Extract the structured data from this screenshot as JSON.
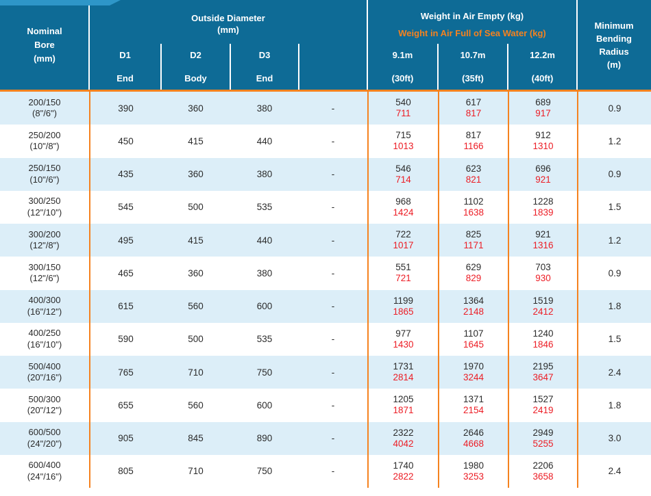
{
  "colors": {
    "header_bg": "#0E6B96",
    "accent_band": "#2E96C8",
    "orange": "#F5821F",
    "red": "#EC1C24",
    "row_alt_blue": "#DCEEF8",
    "text": "#2B2B2B"
  },
  "header": {
    "nominal_bore": "Nominal\nBore\n(mm)",
    "outside_diameter": {
      "title": "Outside Diameter",
      "unit": "(mm)",
      "subcols": [
        {
          "id": "D1",
          "position": "End"
        },
        {
          "id": "D2",
          "position": "Body"
        },
        {
          "id": "D3",
          "position": "End"
        },
        {
          "id": "",
          "position": ""
        }
      ]
    },
    "weight": {
      "title_empty": "Weight in Air Empty (kg)",
      "title_full": "Weight in Air Full of Sea Water (kg)",
      "lengths": [
        {
          "m": "9.1m",
          "ft": "(30ft)"
        },
        {
          "m": "10.7m",
          "ft": "(35ft)"
        },
        {
          "m": "12.2m",
          "ft": "(40ft)"
        }
      ]
    },
    "min_bending_radius": "Minimum\nBending\nRadius\n(m)"
  },
  "rows": [
    {
      "bore": "200/150\n(8\"/6\")",
      "d1": "390",
      "d2": "360",
      "d3": "380",
      "d4": "-",
      "w30_empty": "540",
      "w30_full": "711",
      "w35_empty": "617",
      "w35_full": "817",
      "w40_empty": "689",
      "w40_full": "917",
      "radius": "0.9"
    },
    {
      "bore": "250/200\n(10\"/8\")",
      "d1": "450",
      "d2": "415",
      "d3": "440",
      "d4": "-",
      "w30_empty": "715",
      "w30_full": "1013",
      "w35_empty": "817",
      "w35_full": "1166",
      "w40_empty": "912",
      "w40_full": "1310",
      "radius": "1.2"
    },
    {
      "bore": "250/150\n(10\"/6\")",
      "d1": "435",
      "d2": "360",
      "d3": "380",
      "d4": "-",
      "w30_empty": "546",
      "w30_full": "714",
      "w35_empty": "623",
      "w35_full": "821",
      "w40_empty": "696",
      "w40_full": "921",
      "radius": "0.9"
    },
    {
      "bore": "300/250\n(12\"/10\")",
      "d1": "545",
      "d2": "500",
      "d3": "535",
      "d4": "-",
      "w30_empty": "968",
      "w30_full": "1424",
      "w35_empty": "1102",
      "w35_full": "1638",
      "w40_empty": "1228",
      "w40_full": "1839",
      "radius": "1.5"
    },
    {
      "bore": "300/200\n(12\"/8\")",
      "d1": "495",
      "d2": "415",
      "d3": "440",
      "d4": "-",
      "w30_empty": "722",
      "w30_full": "1017",
      "w35_empty": "825",
      "w35_full": "1171",
      "w40_empty": "921",
      "w40_full": "1316",
      "radius": "1.2"
    },
    {
      "bore": "300/150\n(12\"/6\")",
      "d1": "465",
      "d2": "360",
      "d3": "380",
      "d4": "-",
      "w30_empty": "551",
      "w30_full": "721",
      "w35_empty": "629",
      "w35_full": "829",
      "w40_empty": "703",
      "w40_full": "930",
      "radius": "0.9"
    },
    {
      "bore": "400/300\n(16\"/12\")",
      "d1": "615",
      "d2": "560",
      "d3": "600",
      "d4": "-",
      "w30_empty": "1199",
      "w30_full": "1865",
      "w35_empty": "1364",
      "w35_full": "2148",
      "w40_empty": "1519",
      "w40_full": "2412",
      "radius": "1.8"
    },
    {
      "bore": "400/250\n(16\"/10\")",
      "d1": "590",
      "d2": "500",
      "d3": "535",
      "d4": "-",
      "w30_empty": "977",
      "w30_full": "1430",
      "w35_empty": "1107",
      "w35_full": "1645",
      "w40_empty": "1240",
      "w40_full": "1846",
      "radius": "1.5"
    },
    {
      "bore": "500/400\n(20\"/16\")",
      "d1": "765",
      "d2": "710",
      "d3": "750",
      "d4": "-",
      "w30_empty": "1731",
      "w30_full": "2814",
      "w35_empty": "1970",
      "w35_full": "3244",
      "w40_empty": "2195",
      "w40_full": "3647",
      "radius": "2.4"
    },
    {
      "bore": "500/300\n(20\"/12\")",
      "d1": "655",
      "d2": "560",
      "d3": "600",
      "d4": "-",
      "w30_empty": "1205",
      "w30_full": "1871",
      "w35_empty": "1371",
      "w35_full": "2154",
      "w40_empty": "1527",
      "w40_full": "2419",
      "radius": "1.8"
    },
    {
      "bore": "600/500\n(24\"/20\")",
      "d1": "905",
      "d2": "845",
      "d3": "890",
      "d4": "-",
      "w30_empty": "2322",
      "w30_full": "4042",
      "w35_empty": "2646",
      "w35_full": "4668",
      "w40_empty": "2949",
      "w40_full": "5255",
      "radius": "3.0"
    },
    {
      "bore": "600/400\n(24\"/16\")",
      "d1": "805",
      "d2": "710",
      "d3": "750",
      "d4": "-",
      "w30_empty": "1740",
      "w30_full": "2822",
      "w35_empty": "1980",
      "w35_full": "3253",
      "w40_empty": "2206",
      "w40_full": "3658",
      "radius": "2.4"
    }
  ]
}
